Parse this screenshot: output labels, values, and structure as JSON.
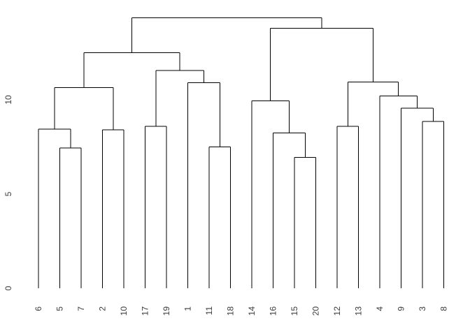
{
  "figure": {
    "background_color": "#ffffff",
    "line_color": "#000000",
    "label_color": "#3c3c3c"
  },
  "chart_data": {
    "type": "dendrogram",
    "orientation": "vertical",
    "title": "",
    "xlabel": "",
    "ylabel": "",
    "grid": false,
    "leaf_order": [
      "6",
      "5",
      "7",
      "2",
      "10",
      "17",
      "19",
      "1",
      "11",
      "18",
      "14",
      "16",
      "15",
      "20",
      "12",
      "13",
      "4",
      "9",
      "3",
      "8"
    ],
    "leaf_label_rotation_deg": -90,
    "y_axis": {
      "ticks": [
        0,
        5,
        10
      ],
      "range": [
        0,
        14.35
      ],
      "tick_label_rotation_deg": -90
    },
    "tree": {
      "h": 14.35,
      "children": [
        {
          "h": 12.5,
          "children": [
            {
              "h": 10.65,
              "children": [
                {
                  "h": 8.45,
                  "children": [
                    {
                      "leaf": "6"
                    },
                    {
                      "h": 7.45,
                      "children": [
                        {
                          "leaf": "5"
                        },
                        {
                          "leaf": "7"
                        }
                      ]
                    }
                  ]
                },
                {
                  "h": 8.4,
                  "children": [
                    {
                      "leaf": "2"
                    },
                    {
                      "leaf": "10"
                    }
                  ]
                }
              ]
            },
            {
              "h": 11.55,
              "children": [
                {
                  "h": 8.6,
                  "children": [
                    {
                      "leaf": "17"
                    },
                    {
                      "leaf": "19"
                    }
                  ]
                },
                {
                  "h": 10.9,
                  "children": [
                    {
                      "leaf": "1"
                    },
                    {
                      "h": 7.5,
                      "children": [
                        {
                          "leaf": "11"
                        },
                        {
                          "leaf": "18"
                        }
                      ]
                    }
                  ]
                }
              ]
            }
          ]
        },
        {
          "h": 13.8,
          "children": [
            {
              "h": 9.95,
              "children": [
                {
                  "leaf": "14"
                },
                {
                  "h": 8.25,
                  "children": [
                    {
                      "leaf": "16"
                    },
                    {
                      "h": 6.95,
                      "children": [
                        {
                          "leaf": "15"
                        },
                        {
                          "leaf": "20"
                        }
                      ]
                    }
                  ]
                }
              ]
            },
            {
              "h": 10.95,
              "children": [
                {
                  "h": 8.6,
                  "children": [
                    {
                      "leaf": "12"
                    },
                    {
                      "leaf": "13"
                    }
                  ]
                },
                {
                  "h": 10.2,
                  "children": [
                    {
                      "leaf": "4"
                    },
                    {
                      "h": 9.55,
                      "children": [
                        {
                          "leaf": "9"
                        },
                        {
                          "h": 8.85,
                          "children": [
                            {
                              "leaf": "3"
                            },
                            {
                              "leaf": "8"
                            }
                          ]
                        }
                      ]
                    }
                  ]
                }
              ]
            }
          ]
        }
      ]
    }
  }
}
